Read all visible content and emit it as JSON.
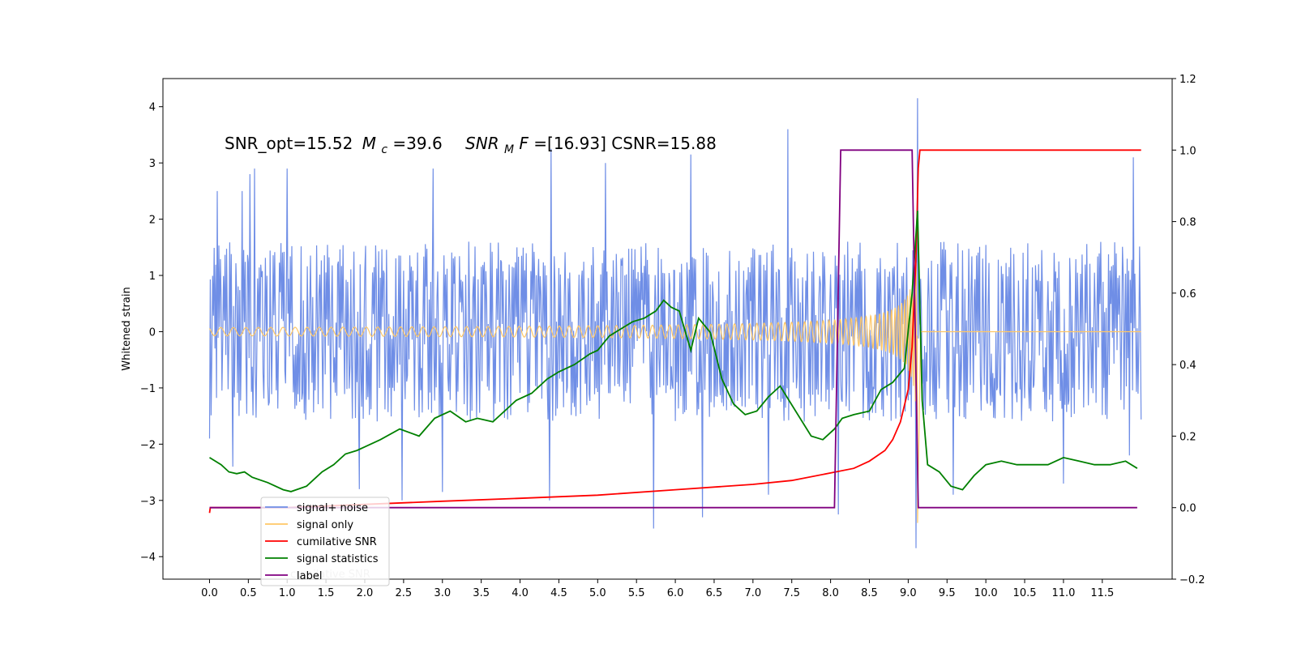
{
  "chart_data": {
    "type": "line",
    "title_parts": {
      "snr_opt": "SNR_opt=15.52",
      "mc_sym": "M",
      "mc_sub": "c",
      "mc_val": "=39.6",
      "snrmf_sym": "SNR",
      "snrmf_sub": "M",
      "snrmf_F": "F",
      "snrmf_val": "=[16.93] CSNR=15.88"
    },
    "xlabel": "",
    "ylabel": "Whitened strain",
    "ylabel_right": "",
    "xlim": [
      -0.6,
      12.4
    ],
    "ylim": [
      -4.4,
      4.5
    ],
    "ylim_right": [
      -0.2,
      1.2
    ],
    "x_ticks": [
      "0.0",
      "0.5",
      "1.0",
      "1.5",
      "2.0",
      "2.5",
      "3.0",
      "3.5",
      "4.0",
      "4.5",
      "5.0",
      "5.5",
      "6.0",
      "6.5",
      "7.0",
      "7.5",
      "8.0",
      "8.5",
      "9.0",
      "9.5",
      "10.0",
      "10.5",
      "11.0",
      "11.5"
    ],
    "y_ticks": [
      "4",
      "3",
      "2",
      "1",
      "0",
      "−1",
      "−2",
      "−3",
      "−4"
    ],
    "y_ticks_right": [
      "1.2",
      "1.0",
      "0.8",
      "0.6",
      "0.4",
      "0.2",
      "0.0",
      "−0.2"
    ],
    "grid": false,
    "legend_position": "lower-left",
    "legend_ghost_text": "cumilative SNR",
    "series": [
      {
        "name": "signal+ noise",
        "axis": "left",
        "color": "#6f8ee6",
        "x_range": [
          0.0,
          12.0
        ],
        "samples": 1200,
        "envelope": [
          -1.6,
          1.6
        ],
        "peaks": [
          {
            "x": 0.0,
            "y": 2.1
          },
          {
            "x": 0.1,
            "y": 2.5
          },
          {
            "x": 0.42,
            "y": 2.5
          },
          {
            "x": 0.52,
            "y": 2.8
          },
          {
            "x": 0.58,
            "y": 2.9
          },
          {
            "x": 1.0,
            "y": 2.9
          },
          {
            "x": 2.88,
            "y": 2.9
          },
          {
            "x": 4.4,
            "y": 3.25
          },
          {
            "x": 5.1,
            "y": 3.0
          },
          {
            "x": 6.2,
            "y": 3.15
          },
          {
            "x": 7.45,
            "y": 3.6
          },
          {
            "x": 9.12,
            "y": 4.15
          },
          {
            "x": 11.0,
            "y": 2.7
          },
          {
            "x": 11.9,
            "y": 3.1
          },
          {
            "x": 0.0,
            "y": -1.9
          },
          {
            "x": 0.3,
            "y": -2.4
          },
          {
            "x": 1.93,
            "y": -2.8
          },
          {
            "x": 2.48,
            "y": -3.0
          },
          {
            "x": 3.0,
            "y": -2.85
          },
          {
            "x": 4.38,
            "y": -3.0
          },
          {
            "x": 5.72,
            "y": -3.5
          },
          {
            "x": 6.35,
            "y": -3.3
          },
          {
            "x": 7.2,
            "y": -2.9
          },
          {
            "x": 8.1,
            "y": -3.25
          },
          {
            "x": 9.1,
            "y": -3.85
          },
          {
            "x": 9.58,
            "y": -2.9
          },
          {
            "x": 11.0,
            "y": -2.7
          },
          {
            "x": 11.85,
            "y": -2.2
          }
        ]
      },
      {
        "name": "signal only",
        "axis": "left",
        "color": "#ffc766",
        "chirp": {
          "t_merge": 9.12,
          "amplitude_at_merge": 1.5,
          "base_amplitude": 0.02,
          "post_merge_spike": -3.4
        }
      },
      {
        "name": "cumilative SNR",
        "axis": "right",
        "color": "#ff0000",
        "x": [
          0.0,
          0.01,
          1.0,
          2.0,
          3.0,
          4.0,
          5.0,
          6.0,
          7.0,
          7.5,
          8.0,
          8.3,
          8.5,
          8.7,
          8.8,
          8.9,
          9.0,
          9.05,
          9.1,
          9.13,
          9.15,
          12.0
        ],
        "y": [
          -0.015,
          0.0,
          0.0,
          0.009,
          0.018,
          0.026,
          0.035,
          0.05,
          0.065,
          0.076,
          0.097,
          0.11,
          0.13,
          0.16,
          0.19,
          0.24,
          0.33,
          0.45,
          0.7,
          0.95,
          1.0,
          1.0
        ]
      },
      {
        "name": "signal statistics",
        "axis": "right",
        "color": "#008000",
        "x": [
          0.0,
          0.15,
          0.25,
          0.35,
          0.45,
          0.55,
          0.75,
          0.95,
          1.05,
          1.25,
          1.45,
          1.6,
          1.75,
          1.9,
          2.0,
          2.2,
          2.45,
          2.7,
          2.9,
          3.1,
          3.3,
          3.45,
          3.65,
          3.85,
          3.95,
          4.15,
          4.35,
          4.5,
          4.7,
          4.9,
          5.0,
          5.15,
          5.3,
          5.45,
          5.6,
          5.75,
          5.85,
          5.95,
          6.05,
          6.2,
          6.3,
          6.45,
          6.6,
          6.75,
          6.9,
          7.05,
          7.2,
          7.35,
          7.55,
          7.75,
          7.9,
          8.05,
          8.15,
          8.3,
          8.5,
          8.65,
          8.8,
          8.95,
          9.05,
          9.12,
          9.18,
          9.25,
          9.4,
          9.55,
          9.7,
          9.85,
          10.0,
          10.2,
          10.4,
          10.6,
          10.8,
          11.0,
          11.2,
          11.4,
          11.6,
          11.8,
          11.95
        ],
        "y": [
          0.14,
          0.12,
          0.1,
          0.095,
          0.1,
          0.085,
          0.07,
          0.05,
          0.045,
          0.06,
          0.1,
          0.12,
          0.15,
          0.16,
          0.17,
          0.19,
          0.22,
          0.2,
          0.25,
          0.27,
          0.24,
          0.25,
          0.24,
          0.28,
          0.3,
          0.32,
          0.36,
          0.38,
          0.4,
          0.43,
          0.44,
          0.48,
          0.5,
          0.52,
          0.53,
          0.55,
          0.58,
          0.56,
          0.55,
          0.44,
          0.53,
          0.49,
          0.36,
          0.29,
          0.26,
          0.27,
          0.31,
          0.34,
          0.27,
          0.2,
          0.19,
          0.22,
          0.25,
          0.26,
          0.27,
          0.33,
          0.35,
          0.39,
          0.6,
          0.83,
          0.3,
          0.12,
          0.1,
          0.06,
          0.05,
          0.09,
          0.12,
          0.13,
          0.12,
          0.12,
          0.12,
          0.14,
          0.13,
          0.12,
          0.12,
          0.13,
          0.11
        ]
      },
      {
        "name": "label",
        "axis": "right",
        "color": "#800080",
        "x": [
          0.0,
          8.05,
          8.13,
          9.05,
          9.13,
          11.95
        ],
        "y": [
          0.0,
          0.0,
          1.0,
          1.0,
          0.0,
          0.0
        ]
      }
    ]
  }
}
